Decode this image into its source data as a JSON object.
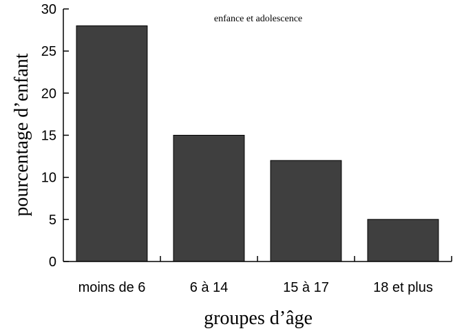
{
  "chart_data": {
    "type": "bar",
    "title": "enfance et adolescence",
    "xlabel": "groupes d’âge",
    "ylabel": "pourcentage d’enfant",
    "categories": [
      "moins de 6",
      "6 à 14",
      "15 à 17",
      "18 et plus"
    ],
    "values": [
      28,
      15,
      12,
      5
    ],
    "ylim": [
      0,
      30
    ],
    "yticks": [
      "0",
      "5",
      "10",
      "15",
      "20",
      "25",
      "30"
    ],
    "grid": false,
    "bar_color": "#3f3f3f"
  }
}
